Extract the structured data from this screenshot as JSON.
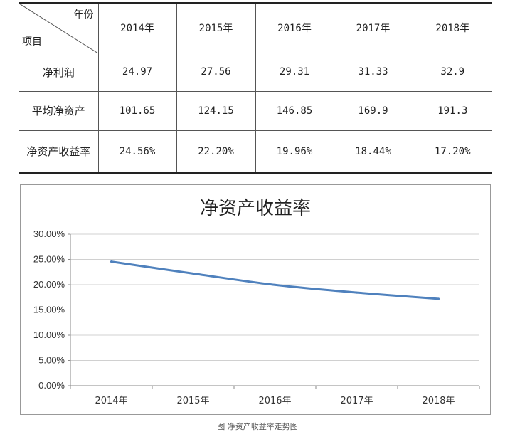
{
  "table": {
    "corner_top": "年份",
    "corner_bottom": "项目",
    "years": [
      "2014年",
      "2015年",
      "2016年",
      "2017年",
      "2018年"
    ],
    "rows": [
      {
        "label": "净利润",
        "values": [
          "24.97",
          "27.56",
          "29.31",
          "31.33",
          "32.9"
        ]
      },
      {
        "label": "平均净资产",
        "values": [
          "101.65",
          "124.15",
          "146.85",
          "169.9",
          "191.3"
        ]
      },
      {
        "label": "净资产收益率",
        "values": [
          "24.56%",
          "22.20%",
          "19.96%",
          "18.44%",
          "17.20%"
        ]
      }
    ]
  },
  "chart_data": {
    "type": "line",
    "title": "净资产收益率",
    "categories": [
      "2014年",
      "2015年",
      "2016年",
      "2017年",
      "2018年"
    ],
    "series": [
      {
        "values": [
          24.56,
          22.2,
          19.96,
          18.44,
          17.2
        ],
        "color": "#4F81BD"
      }
    ],
    "ylim": [
      0,
      30
    ],
    "yticks": [
      "0.00%",
      "5.00%",
      "10.00%",
      "15.00%",
      "20.00%",
      "25.00%",
      "30.00%"
    ],
    "grid": true,
    "legend": "none"
  },
  "caption": "图 净资产收益率走势图"
}
